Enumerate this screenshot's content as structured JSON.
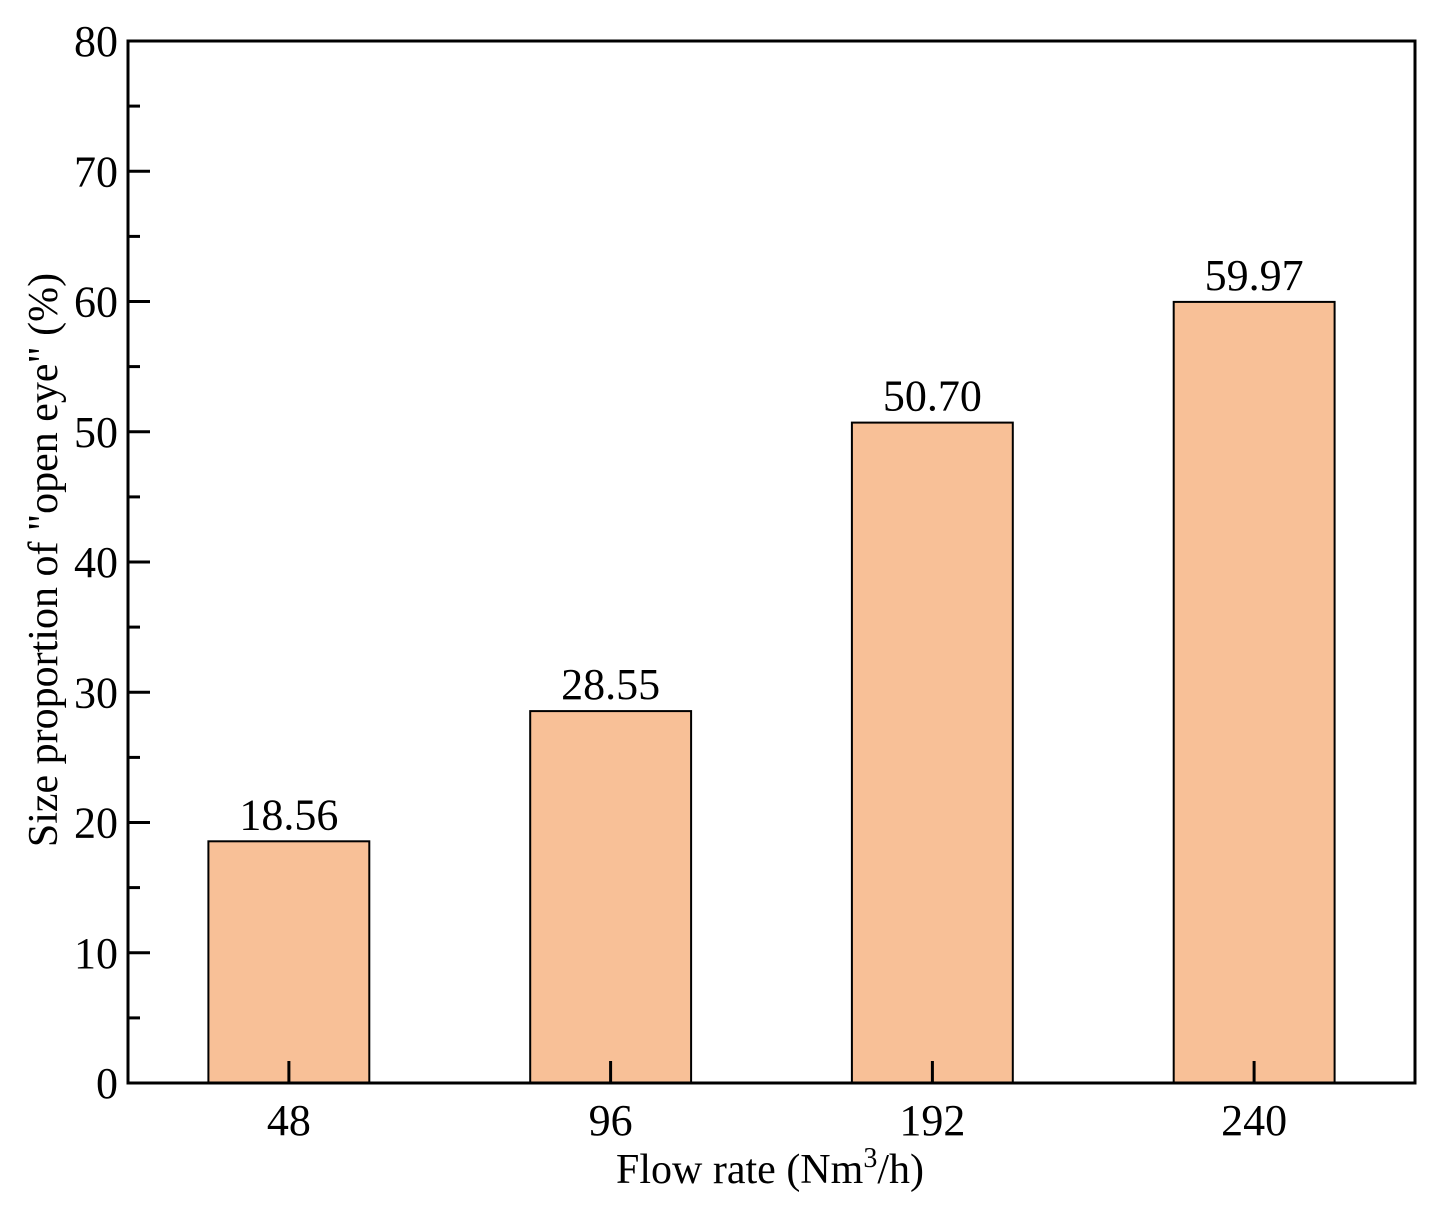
{
  "chart_data": {
    "type": "bar",
    "categories": [
      "48",
      "96",
      "192",
      "240"
    ],
    "series": [
      {
        "values": [
          18.56,
          28.55,
          50.7,
          59.97
        ],
        "labels": [
          "18.56",
          "28.55",
          "50.70",
          "59.97"
        ]
      }
    ],
    "xlabel": {
      "prefix": "Flow rate (Nm",
      "superscript": "3",
      "suffix": "/h)"
    },
    "ylabel": "Size proportion of \"open eye\" (%)",
    "ylim": [
      0,
      80
    ],
    "yticks": [
      "0",
      "10",
      "20",
      "30",
      "40",
      "50",
      "60",
      "70",
      "80"
    ],
    "ytick_values": [
      0,
      10,
      20,
      30,
      40,
      50,
      60,
      70,
      80
    ],
    "y_minor_step": 5,
    "grid": false,
    "legend": "none",
    "colors": {
      "bar_fill": "#F8C097",
      "bar_stroke": "#000000",
      "axis": "#000000"
    }
  }
}
